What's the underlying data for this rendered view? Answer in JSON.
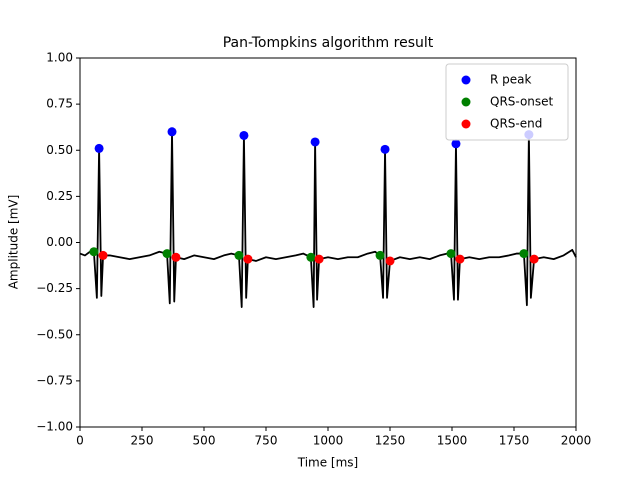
{
  "chart_data": {
    "type": "line",
    "title": "Pan-Tompkins algorithm result",
    "xlabel": "Time [ms]",
    "ylabel": "Amplitude [mV]",
    "xlim": [
      0,
      2000
    ],
    "ylim": [
      -1,
      1
    ],
    "xticks": [
      0,
      250,
      500,
      750,
      1000,
      1250,
      1500,
      1750,
      2000
    ],
    "yticks": [
      {
        "value": -1,
        "label": "−1.00"
      },
      {
        "value": -0.75,
        "label": "−0.75"
      },
      {
        "value": -0.5,
        "label": "−0.50"
      },
      {
        "value": -0.25,
        "label": "−0.25"
      },
      {
        "value": 0,
        "label": "0.00"
      },
      {
        "value": 0.25,
        "label": "0.25"
      },
      {
        "value": 0.5,
        "label": "0.50"
      },
      {
        "value": 0.75,
        "label": "0.75"
      },
      {
        "value": 1,
        "label": "1.00"
      }
    ],
    "legend": "upper right",
    "series": [
      {
        "color": "#000000",
        "marker": false,
        "x": [
          0,
          20,
          40,
          56,
          68,
          77,
          86,
          93,
          120,
          160,
          200,
          240,
          280,
          320,
          351,
          362,
          371,
          380,
          387,
          420,
          460,
          500,
          540,
          580,
          610,
          641,
          652,
          661,
          670,
          677,
          710,
          750,
          790,
          830,
          870,
          900,
          931,
          942,
          948,
          956,
          964,
          1000,
          1040,
          1080,
          1120,
          1160,
          1190,
          1210,
          1222,
          1230,
          1238,
          1250,
          1290,
          1330,
          1370,
          1410,
          1450,
          1480,
          1496,
          1508,
          1516,
          1524,
          1532,
          1570,
          1610,
          1650,
          1690,
          1730,
          1760,
          1790,
          1802,
          1810,
          1818,
          1831,
          1870,
          1910,
          1950,
          1985,
          2000
        ],
        "values": [
          -0.06,
          -0.07,
          -0.05,
          -0.05,
          -0.3,
          0.51,
          -0.29,
          -0.07,
          -0.07,
          -0.08,
          -0.09,
          -0.08,
          -0.07,
          -0.05,
          -0.06,
          -0.33,
          0.6,
          -0.32,
          -0.08,
          -0.09,
          -0.07,
          -0.08,
          -0.09,
          -0.07,
          -0.06,
          -0.07,
          -0.35,
          0.58,
          -0.3,
          -0.09,
          -0.1,
          -0.08,
          -0.09,
          -0.08,
          -0.07,
          -0.06,
          -0.08,
          -0.35,
          0.545,
          -0.31,
          -0.09,
          -0.08,
          -0.09,
          -0.08,
          -0.08,
          -0.06,
          -0.05,
          -0.07,
          -0.3,
          0.505,
          -0.3,
          -0.1,
          -0.08,
          -0.09,
          -0.08,
          -0.09,
          -0.07,
          -0.06,
          -0.06,
          -0.31,
          0.535,
          -0.31,
          -0.09,
          -0.08,
          -0.09,
          -0.08,
          -0.08,
          -0.07,
          -0.06,
          -0.06,
          -0.34,
          0.585,
          -0.3,
          -0.09,
          -0.08,
          -0.09,
          -0.07,
          -0.04,
          -0.08
        ]
      },
      {
        "name": "R peak",
        "color": "#0000ff",
        "marker": true,
        "x": [
          77,
          371,
          661,
          948,
          1230,
          1516,
          1810
        ],
        "values": [
          0.51,
          0.6,
          0.58,
          0.545,
          0.505,
          0.535,
          0.585
        ]
      },
      {
        "name": "QRS-onset",
        "color": "#008000",
        "marker": true,
        "x": [
          56,
          351,
          641,
          931,
          1210,
          1496,
          1790
        ],
        "values": [
          -0.05,
          -0.06,
          -0.07,
          -0.08,
          -0.07,
          -0.06,
          -0.06
        ]
      },
      {
        "name": "QRS-end",
        "color": "#ff0000",
        "marker": true,
        "x": [
          93,
          387,
          677,
          964,
          1250,
          1532,
          1831
        ],
        "values": [
          -0.07,
          -0.08,
          -0.09,
          -0.09,
          -0.1,
          -0.09,
          -0.09
        ]
      }
    ]
  }
}
